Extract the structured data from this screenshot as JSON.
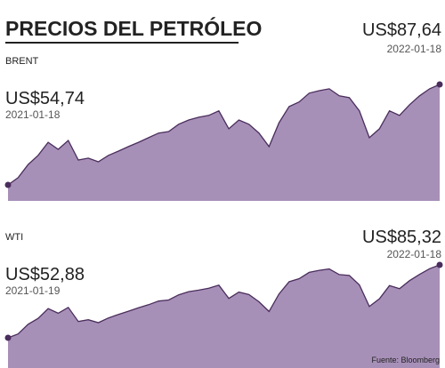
{
  "title": "PRECIOS DEL PETRÓLEO",
  "source": "Fuente: Bloomberg",
  "chart_data": [
    {
      "type": "area",
      "title": "BRENT",
      "color": "#a790b8",
      "values": [
        54.74,
        57.1,
        61.4,
        64.4,
        68.7,
        66.4,
        69.3,
        62.9,
        63.5,
        62.3,
        64.4,
        65.8,
        67.3,
        68.7,
        70.2,
        71.7,
        72.2,
        74.6,
        76.0,
        76.9,
        77.5,
        79.0,
        73.1,
        76.0,
        74.6,
        71.7,
        67.3,
        75.1,
        80.4,
        81.9,
        84.8,
        85.6,
        86.2,
        83.9,
        83.3,
        79.0,
        70.2,
        73.1,
        79.0,
        77.5,
        81.0,
        83.9,
        86.2,
        87.64
      ],
      "annotations": [
        {
          "label": "US$54,74",
          "date": "2021-01-18"
        },
        {
          "label": "US$87,64",
          "date": "2022-01-18"
        }
      ]
    },
    {
      "type": "area",
      "title": "WTI",
      "color": "#a790b8",
      "values": [
        52.88,
        54.6,
        58.9,
        61.5,
        65.9,
        63.8,
        66.4,
        60.1,
        60.9,
        59.6,
        61.7,
        63.3,
        64.7,
        66.2,
        67.6,
        69.2,
        69.7,
        72.0,
        73.4,
        74.1,
        74.9,
        76.3,
        70.4,
        73.2,
        72.1,
        68.9,
        64.6,
        72.4,
        77.8,
        79.2,
        82.0,
        82.9,
        83.5,
        81.0,
        80.6,
        76.4,
        66.8,
        70.2,
        76.1,
        74.7,
        78.3,
        81.1,
        83.6,
        85.32
      ],
      "annotations": [
        {
          "label": "US$52,88",
          "date": "2021-01-19"
        },
        {
          "label": "US$85,32",
          "date": "2022-01-18"
        }
      ]
    }
  ]
}
